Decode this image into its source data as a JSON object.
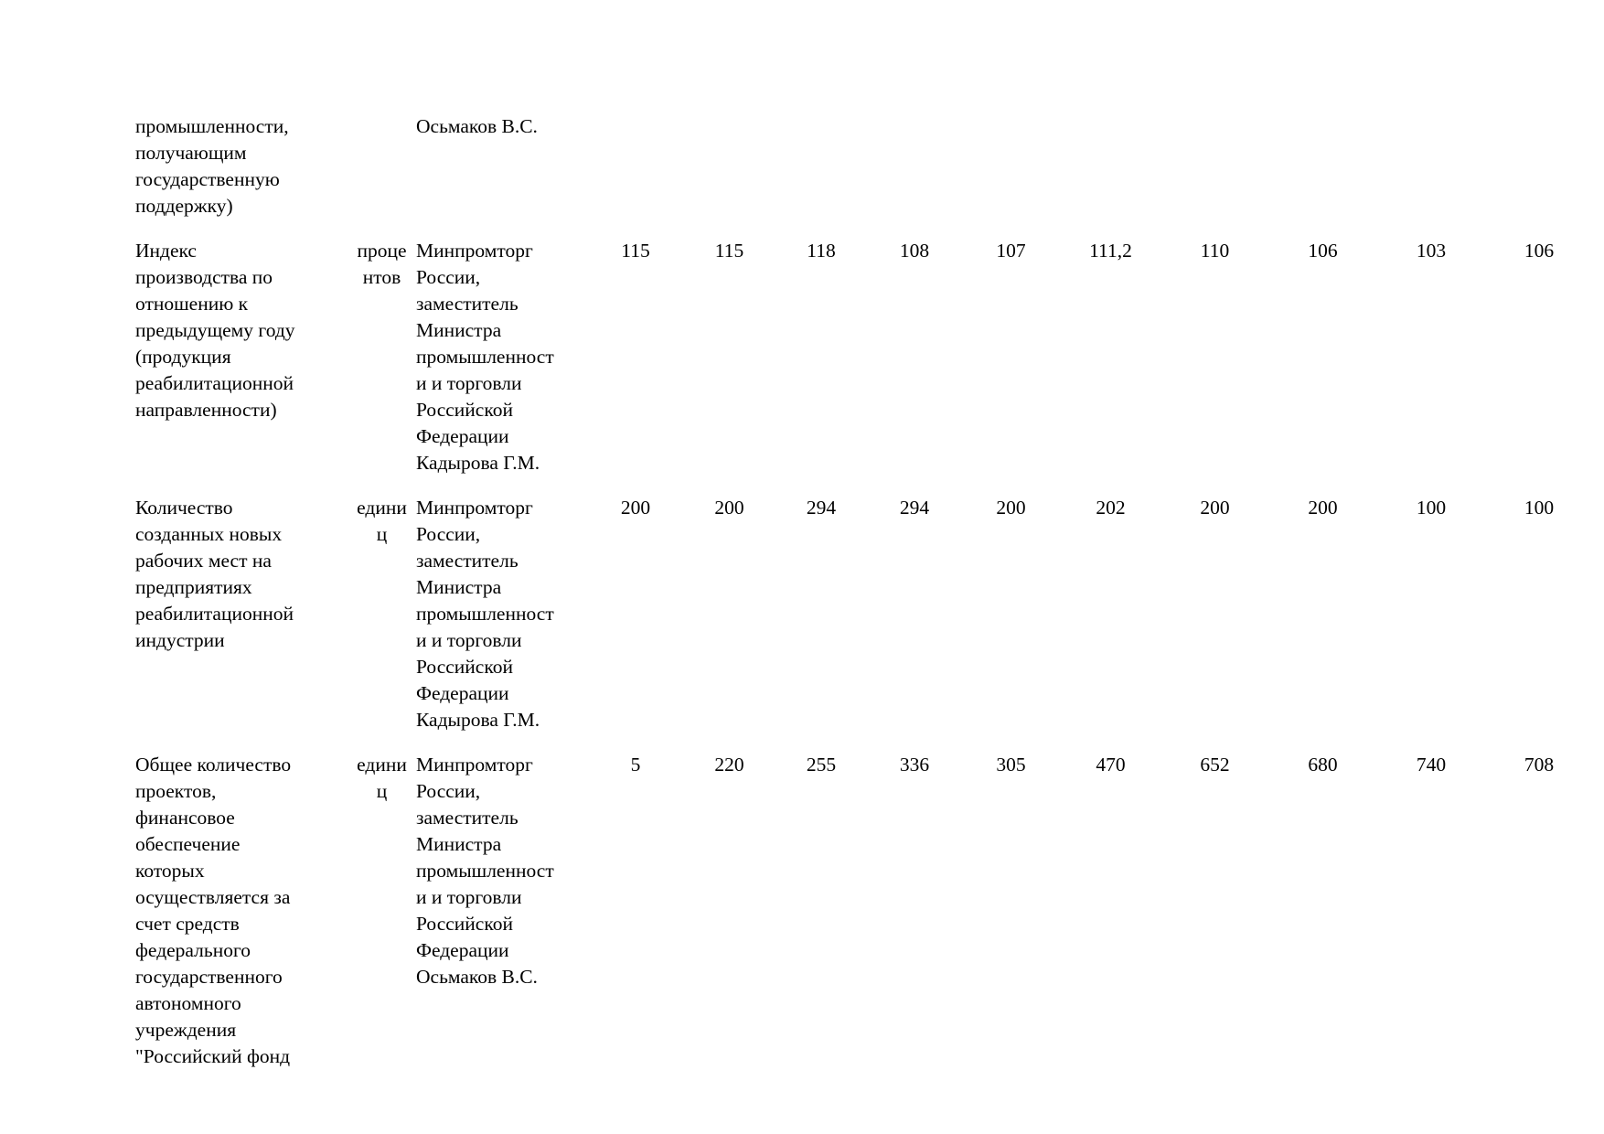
{
  "page": {
    "background_color": "#ffffff",
    "text_color": "#000000"
  },
  "table": {
    "rows": [
      {
        "indicator": "промышленности,\nполучающим\nгосударственную\nподдержку)",
        "unit": "",
        "responsible": "Осьмаков В.С.",
        "values": [
          "",
          "",
          "",
          "",
          "",
          "",
          "",
          "",
          "",
          ""
        ]
      },
      {
        "indicator": "Индекс\nпроизводства по\nотношению к\nпредыдущему году\n(продукция\nреабилитационной\nнаправленности)",
        "unit": "проце\nнтов",
        "responsible": "Минпромторг\nРоссии,\nзаместитель\nМинистра\nпромышленност\nи и торговли\nРоссийской\nФедерации\nКадырова Г.М.",
        "values": [
          "115",
          "115",
          "118",
          "108",
          "107",
          "111,2",
          "110",
          "106",
          "103",
          "106"
        ]
      },
      {
        "indicator": "Количество\nсозданных новых\nрабочих мест на\nпредприятиях\nреабилитационной\nиндустрии",
        "unit": "едини\nц",
        "responsible": "Минпромторг\nРоссии,\nзаместитель\nМинистра\nпромышленност\nи и торговли\nРоссийской\nФедерации\nКадырова Г.М.",
        "values": [
          "200",
          "200",
          "294",
          "294",
          "200",
          "202",
          "200",
          "200",
          "100",
          "100"
        ]
      },
      {
        "indicator": "Общее количество\nпроектов,\nфинансовое\nобеспечение\nкоторых\nосуществляется за\nсчет средств\nфедерального\nгосударственного\nавтономного\nучреждения\n\"Российский фонд",
        "unit": "едини\nц",
        "responsible": "Минпромторг\nРоссии,\nзаместитель\nМинистра\nпромышленност\nи и торговли\nРоссийской\nФедерации\nОсьмаков В.С.",
        "values": [
          "5",
          "220",
          "255",
          "336",
          "305",
          "470",
          "652",
          "680",
          "740",
          "708"
        ]
      }
    ]
  }
}
